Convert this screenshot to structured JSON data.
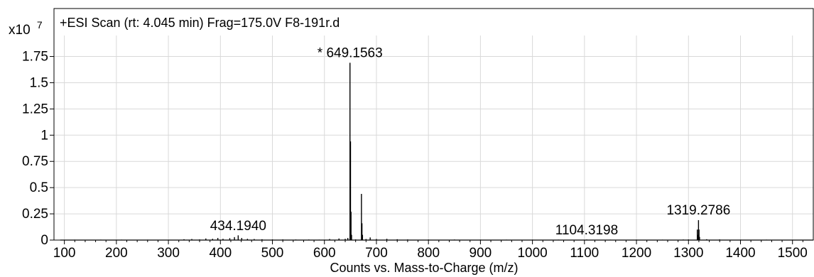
{
  "chart_data": {
    "type": "line",
    "title": "+ESI Scan (rt: 4.045 min) Frag=175.0V F8-191r.d",
    "xlabel": "Counts vs. Mass-to-Charge (m/z)",
    "ylabel": "",
    "y_multiplier": "x10",
    "y_exponent": "7",
    "xlim": [
      80,
      1540
    ],
    "ylim": [
      0,
      1.95
    ],
    "grid": true,
    "x_ticks": [
      100,
      200,
      300,
      400,
      500,
      600,
      700,
      800,
      900,
      1000,
      1100,
      1200,
      1300,
      1400,
      1500
    ],
    "y_ticks": [
      0,
      0.25,
      0.5,
      0.75,
      1,
      1.25,
      1.5,
      1.75
    ],
    "y_tick_labels": [
      "0",
      "0.25",
      "0.5",
      "0.75",
      "1",
      "1.25",
      "1.5",
      "1.75"
    ],
    "series": [
      {
        "x": [
          120,
          170,
          210,
          260,
          290,
          330,
          345,
          360,
          372,
          385,
          395,
          405,
          418,
          427,
          434.194,
          441,
          452,
          465,
          480,
          500,
          520,
          545,
          570,
          590,
          610,
          628,
          640,
          645,
          649.1563,
          650.16,
          651.16,
          652.16,
          660,
          671.2,
          672.2,
          673.2,
          680,
          688,
          700,
          720,
          740,
          760,
          800,
          850,
          900,
          950,
          1000,
          1050,
          1104.3198,
          1150,
          1200,
          1250,
          1290,
          1300,
          1317,
          1318,
          1319.2786,
          1320.28,
          1321.28,
          1335,
          1360,
          1400,
          1450,
          1500
        ],
        "y": [
          0.004,
          0.004,
          0.004,
          0.004,
          0.003,
          0.008,
          0.01,
          0.006,
          0.015,
          0.012,
          0.02,
          0.012,
          0.018,
          0.028,
          0.045,
          0.02,
          0.012,
          0.01,
          0.008,
          0.006,
          0.006,
          0.005,
          0.005,
          0.004,
          0.01,
          0.015,
          0.012,
          0.02,
          1.69,
          0.94,
          0.27,
          0.05,
          0.006,
          0.44,
          0.16,
          0.05,
          0.01,
          0.025,
          0.01,
          0.012,
          0.008,
          0.006,
          0.005,
          0.005,
          0.004,
          0.004,
          0.004,
          0.004,
          0.005,
          0.004,
          0.004,
          0.004,
          0.005,
          0.006,
          0.1,
          0.05,
          0.19,
          0.1,
          0.03,
          0.008,
          0.006,
          0.004,
          0.004,
          0.003
        ]
      }
    ],
    "annotations": [
      {
        "text": "* 649.1563",
        "x": 649.1563,
        "y": 1.69
      },
      {
        "text": "434.1940",
        "x": 434.194,
        "y": 0.045
      },
      {
        "text": "1104.3198",
        "x": 1104.3198,
        "y": 0.005
      },
      {
        "text": "1319.2786",
        "x": 1319.2786,
        "y": 0.19
      }
    ],
    "colors": {
      "trace": "#000000",
      "grid": "#d9d9d9",
      "axis": "#000000"
    }
  }
}
